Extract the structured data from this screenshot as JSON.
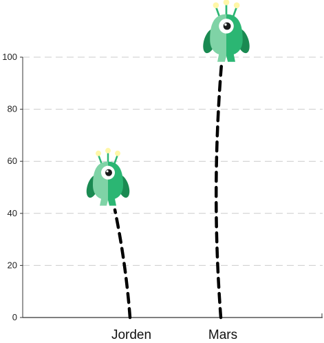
{
  "chart_data": {
    "type": "scatter",
    "title": "",
    "xlabel": "",
    "ylabel": "",
    "categories": [
      "Jorden",
      "Mars"
    ],
    "values": [
      44,
      100
    ],
    "ylim": [
      0,
      100
    ],
    "yticks": [
      0,
      20,
      40,
      60,
      80,
      100
    ],
    "grid": true,
    "legend": "none",
    "marker_icon": "green-alien-icon",
    "trail_style": "dashed-line",
    "colors": {
      "alien_light": "#7fd3a6",
      "alien_mid": "#2bb673",
      "alien_dark": "#1a8a52",
      "antenna_tip": "#fff7a8",
      "trail": "#000000",
      "grid": "#cccccc",
      "axis": "#333333"
    }
  }
}
